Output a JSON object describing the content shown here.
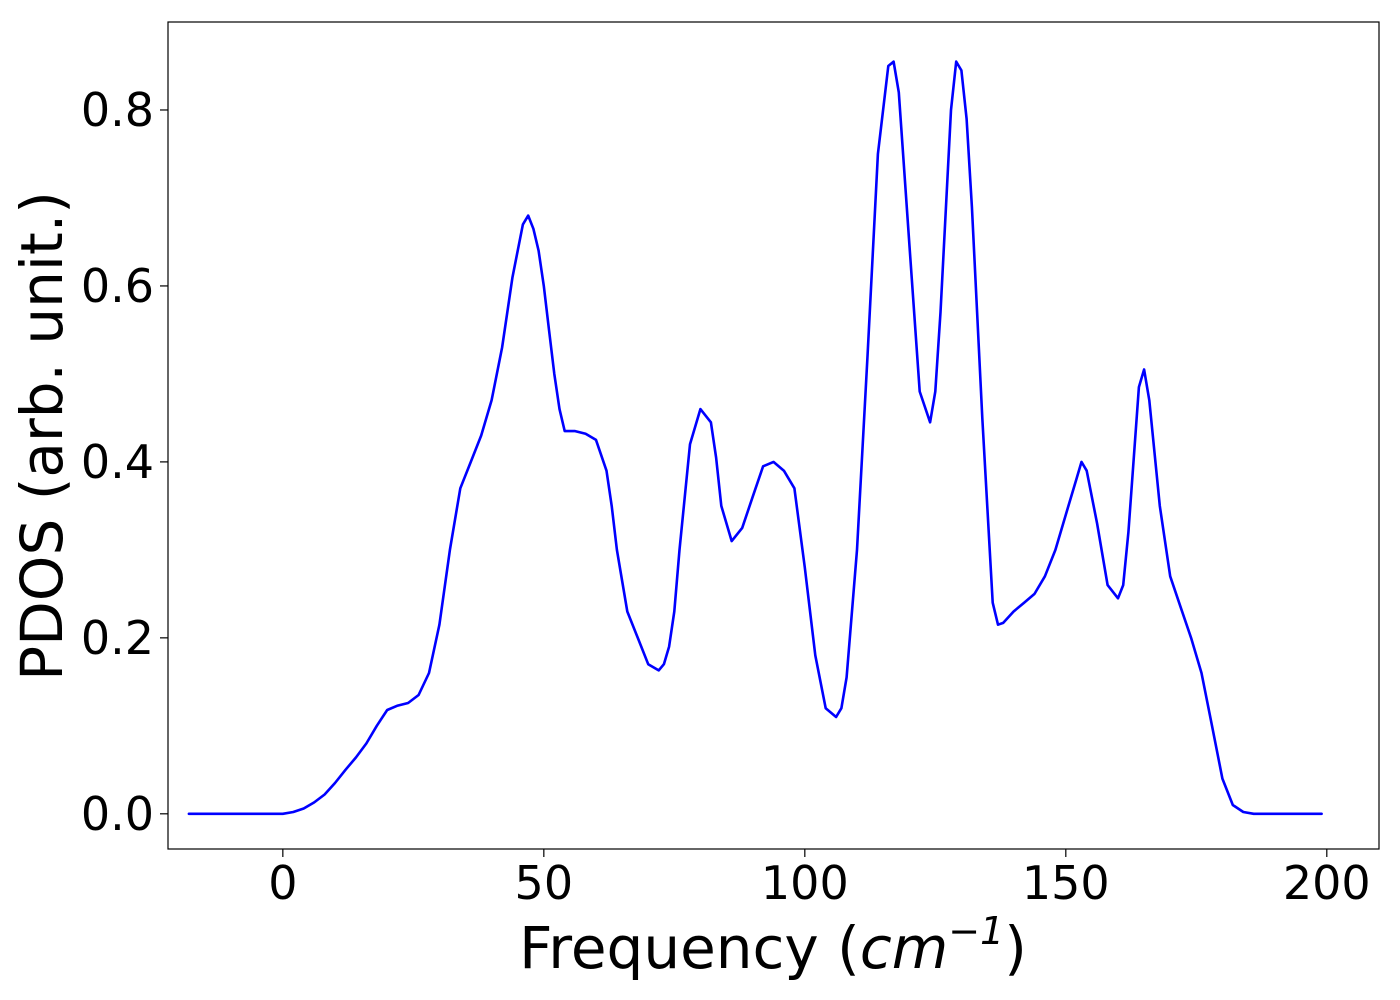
{
  "chart_data": {
    "type": "line",
    "title": "",
    "xlabel": {
      "prefix": "Frequency (",
      "unit": "cm",
      "exponent": "−1",
      "suffix": ")"
    },
    "ylabel": "PDOS (arb. unit.)",
    "xlim": [
      -22,
      210
    ],
    "ylim": [
      -0.04,
      0.9
    ],
    "xticks": [
      {
        "value": 0,
        "label": "0"
      },
      {
        "value": 50,
        "label": "50"
      },
      {
        "value": 100,
        "label": "100"
      },
      {
        "value": 150,
        "label": "150"
      },
      {
        "value": 200,
        "label": "200"
      }
    ],
    "yticks": [
      {
        "value": 0.0,
        "label": "0.0"
      },
      {
        "value": 0.2,
        "label": "0.2"
      },
      {
        "value": 0.4,
        "label": "0.4"
      },
      {
        "value": 0.6,
        "label": "0.6"
      },
      {
        "value": 0.8,
        "label": "0.8"
      }
    ],
    "grid": false,
    "legend": "none",
    "series": [
      {
        "color": "#0000ff",
        "x": [
          -18,
          0,
          2,
          4,
          6,
          8,
          10,
          12,
          14,
          16,
          18,
          20,
          22,
          24,
          26,
          28,
          30,
          32,
          34,
          36,
          38,
          40,
          42,
          44,
          46,
          47,
          48,
          49,
          50,
          51,
          52,
          53,
          54,
          56,
          58,
          60,
          62,
          63,
          64,
          66,
          68,
          70,
          72,
          73,
          74,
          75,
          76,
          78,
          80,
          82,
          83,
          84,
          86,
          88,
          90,
          92,
          94,
          96,
          98,
          100,
          102,
          104,
          106,
          107,
          108,
          110,
          112,
          114,
          116,
          117,
          118,
          120,
          122,
          124,
          125,
          126,
          128,
          129,
          130,
          131,
          132,
          133,
          134,
          136,
          137,
          138,
          140,
          142,
          144,
          146,
          148,
          150,
          152,
          153,
          154,
          156,
          158,
          160,
          161,
          162,
          164,
          165,
          166,
          168,
          170,
          172,
          174,
          176,
          178,
          180,
          182,
          184,
          186,
          190,
          199
        ],
        "y": [
          0,
          0.0,
          0.002,
          0.006,
          0.013,
          0.022,
          0.035,
          0.05,
          0.064,
          0.08,
          0.1,
          0.118,
          0.123,
          0.126,
          0.135,
          0.16,
          0.215,
          0.3,
          0.37,
          0.4,
          0.43,
          0.47,
          0.53,
          0.61,
          0.67,
          0.68,
          0.665,
          0.64,
          0.6,
          0.55,
          0.5,
          0.46,
          0.435,
          0.435,
          0.432,
          0.425,
          0.39,
          0.35,
          0.3,
          0.23,
          0.2,
          0.17,
          0.163,
          0.17,
          0.19,
          0.23,
          0.3,
          0.42,
          0.46,
          0.445,
          0.405,
          0.35,
          0.31,
          0.325,
          0.36,
          0.395,
          0.4,
          0.39,
          0.37,
          0.28,
          0.18,
          0.12,
          0.11,
          0.12,
          0.155,
          0.3,
          0.52,
          0.75,
          0.85,
          0.855,
          0.82,
          0.65,
          0.48,
          0.445,
          0.48,
          0.57,
          0.8,
          0.855,
          0.845,
          0.79,
          0.69,
          0.57,
          0.45,
          0.24,
          0.215,
          0.217,
          0.23,
          0.24,
          0.25,
          0.27,
          0.3,
          0.34,
          0.38,
          0.4,
          0.39,
          0.33,
          0.26,
          0.245,
          0.26,
          0.32,
          0.485,
          0.505,
          0.47,
          0.35,
          0.27,
          0.235,
          0.2,
          0.16,
          0.1,
          0.04,
          0.01,
          0.002,
          0.0,
          0.0,
          0.0
        ]
      }
    ]
  }
}
